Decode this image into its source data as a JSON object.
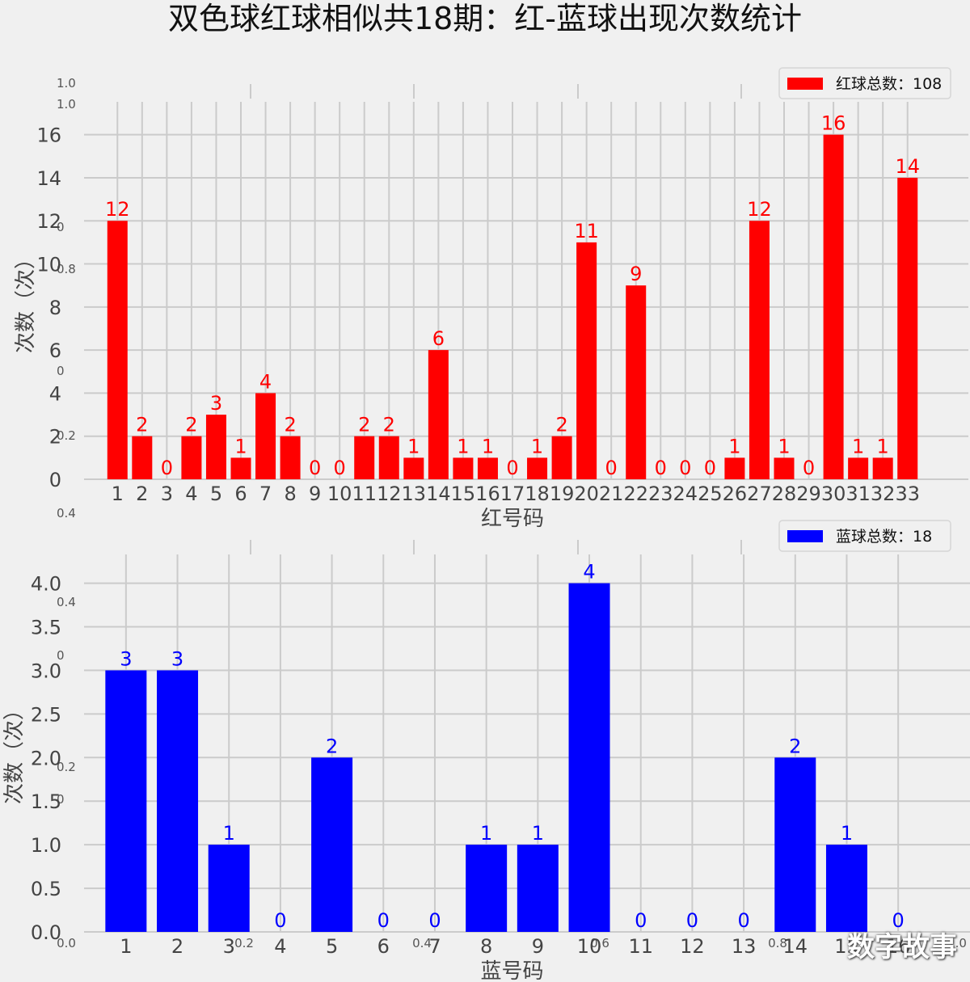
{
  "title": "双色球红球相似共18期：红-蓝球出现次数统计",
  "watermark": "数字故事",
  "colors": {
    "red": "#ff0000",
    "blue": "#0000ff",
    "grid": "#cbcbcb",
    "background": "#f0f0f0"
  },
  "chart_data": [
    {
      "type": "bar",
      "categories": [
        "1",
        "2",
        "3",
        "4",
        "5",
        "6",
        "7",
        "8",
        "9",
        "10",
        "11",
        "12",
        "13",
        "14",
        "15",
        "16",
        "17",
        "18",
        "19",
        "20",
        "21",
        "22",
        "23",
        "24",
        "25",
        "26",
        "27",
        "28",
        "29",
        "30",
        "31",
        "32",
        "33"
      ],
      "values": [
        12,
        2,
        0,
        2,
        3,
        1,
        4,
        2,
        0,
        0,
        2,
        2,
        1,
        6,
        1,
        1,
        0,
        1,
        2,
        11,
        0,
        9,
        0,
        0,
        0,
        1,
        12,
        1,
        0,
        16,
        1,
        1,
        14
      ],
      "xlabel": "红号码",
      "ylabel": "次数（次）",
      "ylim": [
        0,
        17
      ],
      "yticks": [
        0,
        2,
        4,
        6,
        8,
        10,
        12,
        14,
        16
      ],
      "legend": "红球总数：108",
      "legend_position": "top-right",
      "grid": true
    },
    {
      "type": "bar",
      "categories": [
        "1",
        "2",
        "3",
        "4",
        "5",
        "6",
        "7",
        "8",
        "9",
        "10",
        "11",
        "12",
        "13",
        "14",
        "15",
        "16"
      ],
      "values": [
        3,
        3,
        1,
        0,
        2,
        0,
        0,
        1,
        1,
        4,
        0,
        0,
        0,
        2,
        1,
        0
      ],
      "xlabel": "蓝号码",
      "ylabel": "次数（次）",
      "ylim": [
        0,
        4.2
      ],
      "yticks": [
        "0.0",
        "0.5",
        "1.0",
        "1.5",
        "2.0",
        "2.5",
        "3.0",
        "3.5",
        "4.0"
      ],
      "legend": "蓝球总数：18",
      "legend_position": "top-right",
      "grid": true
    }
  ],
  "ghost_axis": {
    "yticks": [
      "1.0",
      "1.0",
      "0",
      "0.8",
      "0",
      "0.2",
      "0.4",
      "0.4",
      "0",
      "0.2",
      "0"
    ],
    "xticks": [
      "0.0",
      "0.2",
      "0.4",
      "0.6",
      "0.8",
      "1.0"
    ]
  }
}
